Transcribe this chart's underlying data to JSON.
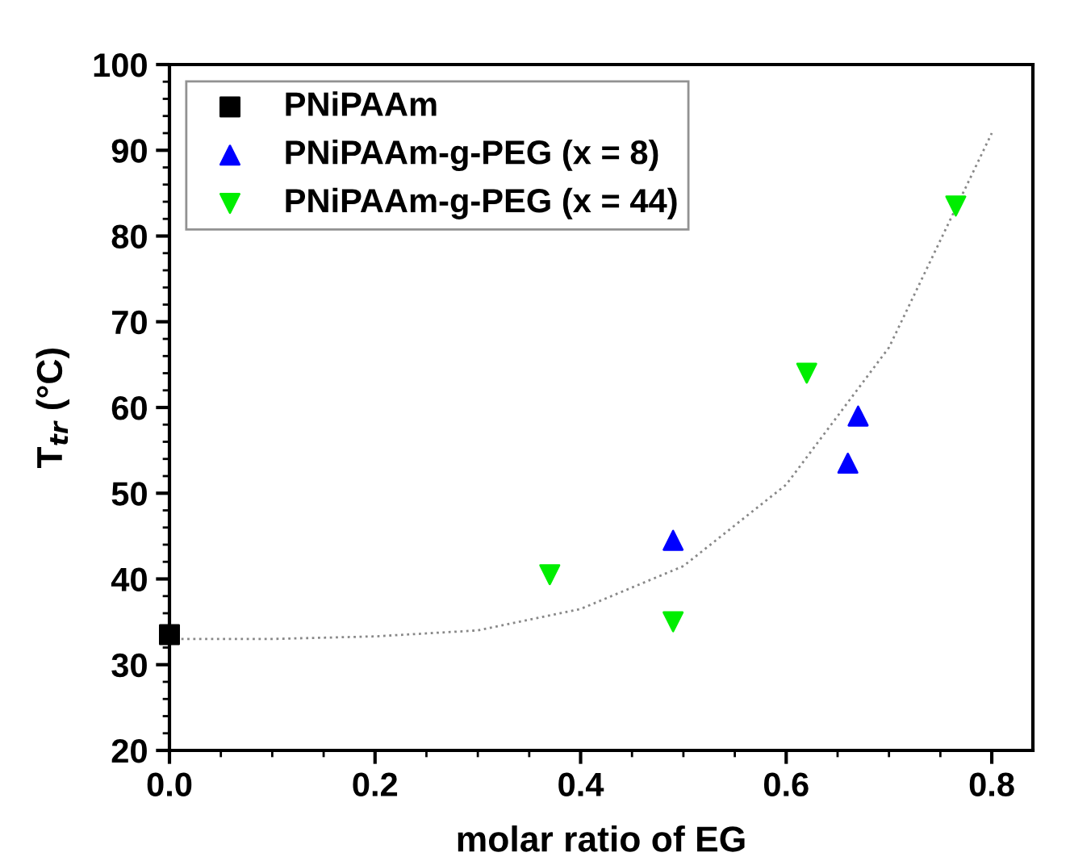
{
  "chart_data": {
    "type": "scatter",
    "xlabel": "molar ratio of EG",
    "ylabel": "T$_{tr}$ (°C)",
    "xlim": [
      0,
      0.84
    ],
    "ylim": [
      20,
      100
    ],
    "xticks": [
      {
        "value": 0,
        "label": "0.0"
      },
      {
        "value": 0.2,
        "label": "0.2"
      },
      {
        "value": 0.4,
        "label": "0.4"
      },
      {
        "value": 0.6,
        "label": "0.6"
      },
      {
        "value": 0.8,
        "label": "0.8"
      }
    ],
    "yticks": [
      20,
      30,
      40,
      50,
      60,
      70,
      80,
      90,
      100
    ],
    "grid": false,
    "legend": "top left",
    "series": [
      {
        "name": "PNiPAAm",
        "color": "#000000",
        "marker": "square",
        "x": [
          0.0
        ],
        "values": [
          33.5
        ]
      },
      {
        "name": "PNiPAAm-g-PEG (x = 8)",
        "color": "#0000ff",
        "marker": "triangle",
        "x": [
          0.49,
          0.66,
          0.67
        ],
        "values": [
          44.5,
          53.5,
          59
        ]
      },
      {
        "name": "PNiPAAm-g-PEG (x = 44)",
        "color": "#00ee00",
        "marker": "triangle_down",
        "x": [
          0.37,
          0.49,
          0.62,
          0.765
        ],
        "values": [
          40.5,
          35,
          64,
          83.5
        ]
      },
      {
        "type": "line",
        "color": "#888888",
        "marker": "none",
        "line_style": "dotted",
        "x": [
          0,
          0.1,
          0.2,
          0.3,
          0.4,
          0.5,
          0.6,
          0.7,
          0.8
        ],
        "values": [
          33,
          33,
          33.3,
          34,
          36.5,
          41.5,
          51,
          67,
          92
        ]
      }
    ]
  }
}
